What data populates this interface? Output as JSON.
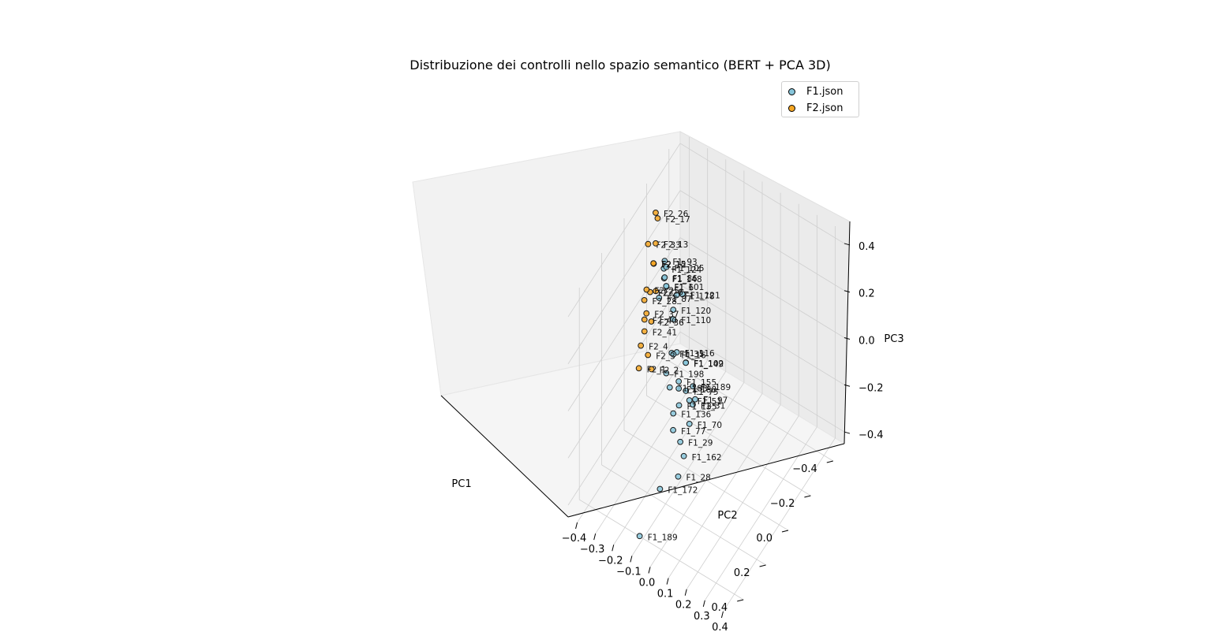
{
  "chart_data": {
    "type": "scatter",
    "title": "Distribuzione dei controlli nello spazio semantico (BERT + PCA 3D)",
    "xlabel": "PC1",
    "ylabel": "PC2",
    "zlabel": "PC3",
    "xticks": [
      "−0.4",
      "−0.2",
      "0.0",
      "0.2",
      "0.4"
    ],
    "yticks": [
      "−0.4",
      "−0.3",
      "−0.2",
      "−0.1",
      "0.0",
      "0.1",
      "0.2",
      "0.3",
      "0.4"
    ],
    "zticks": [
      "−0.4",
      "−0.2",
      "0.0",
      "0.2",
      "0.4"
    ],
    "xlim": [
      -0.5,
      0.5
    ],
    "ylim": [
      -0.45,
      0.45
    ],
    "zlim": [
      -0.45,
      0.45
    ],
    "grid": true,
    "legend_position": "top-right",
    "colors": {
      "F1.json": "#87c5da",
      "F2.json": "#f5a623"
    },
    "series": [
      {
        "name": "F1.json",
        "points": [
          {
            "label": "F1_148",
            "x": 0.05,
            "y": -0.2,
            "z": 0.35
          },
          {
            "label": "F1_124",
            "x": 0.02,
            "y": -0.22,
            "z": 0.36
          },
          {
            "label": "F1_6",
            "x": 0.03,
            "y": -0.2,
            "z": 0.3
          },
          {
            "label": "F1_121",
            "x": 0.05,
            "y": -0.1,
            "z": 0.33
          },
          {
            "label": "F1_105",
            "x": -0.1,
            "y": -0.28,
            "z": 0.25
          },
          {
            "label": "F1_93",
            "x": -0.15,
            "y": -0.32,
            "z": 0.22
          },
          {
            "label": "F1_101",
            "x": -0.05,
            "y": -0.25,
            "z": 0.22
          },
          {
            "label": "F1_86",
            "x": -0.15,
            "y": -0.32,
            "z": 0.15
          },
          {
            "label": "F1_87",
            "x": -0.1,
            "y": -0.32,
            "z": 0.1
          },
          {
            "label": "F1_110",
            "x": 0.05,
            "y": -0.15,
            "z": 0.2
          },
          {
            "label": "F1_120",
            "x": 0.05,
            "y": -0.15,
            "z": 0.24
          },
          {
            "label": "F1_178",
            "x": 0.02,
            "y": -0.15,
            "z": 0.28
          },
          {
            "label": "F1_116",
            "x": 0.1,
            "y": -0.1,
            "z": 0.12
          },
          {
            "label": "F1_102",
            "x": 0.1,
            "y": -0.05,
            "z": 0.1
          },
          {
            "label": "F1_149",
            "x": 0.15,
            "y": -0.02,
            "z": 0.15
          },
          {
            "label": "F1_189",
            "x": 0.2,
            "y": 0.05,
            "z": 0.12
          },
          {
            "label": "F1_97",
            "x": 0.18,
            "y": 0.05,
            "z": 0.05
          },
          {
            "label": "F1_51",
            "x": 0.15,
            "y": 0.0,
            "z": 0.0
          },
          {
            "label": "F1_75",
            "x": 0.1,
            "y": -0.05,
            "z": -0.02
          },
          {
            "label": "F1_31",
            "x": 0.12,
            "y": 0.0,
            "z": -0.04
          },
          {
            "label": "F1_70",
            "x": 0.15,
            "y": 0.0,
            "z": -0.1
          },
          {
            "label": "F1_162",
            "x": 0.2,
            "y": 0.0,
            "z": -0.2
          },
          {
            "label": "F1_28",
            "x": 0.25,
            "y": 0.0,
            "z": -0.25
          },
          {
            "label": "F1_29",
            "x": 0.15,
            "y": -0.05,
            "z": -0.2
          },
          {
            "label": "F1_77",
            "x": 0.1,
            "y": -0.12,
            "z": -0.22
          },
          {
            "label": "F1_136",
            "x": 0.05,
            "y": -0.15,
            "z": -0.2
          },
          {
            "label": "F1_183",
            "x": 0.0,
            "y": -0.2,
            "z": -0.15
          },
          {
            "label": "F1_198",
            "x": -0.05,
            "y": -0.25,
            "z": -0.15
          },
          {
            "label": "F1_35",
            "x": -0.05,
            "y": -0.22,
            "z": -0.05
          },
          {
            "label": "F1_16",
            "x": 0.0,
            "y": -0.18,
            "z": 0.0
          },
          {
            "label": "F1_155",
            "x": 0.05,
            "y": -0.12,
            "z": -0.05
          },
          {
            "label": "F1_188",
            "x": 0.05,
            "y": -0.12,
            "z": -0.08
          },
          {
            "label": "F1_135",
            "x": 0.08,
            "y": -0.1,
            "z": -0.12
          },
          {
            "label": "F1_172",
            "x": 0.25,
            "y": -0.1,
            "z": -0.35
          },
          {
            "label": "F1_189",
            "x": 0.35,
            "y": -0.15,
            "z": -0.5
          }
        ]
      },
      {
        "name": "F2.json",
        "points": [
          {
            "label": "F2_26",
            "x": -0.2,
            "y": -0.4,
            "z": 0.35
          },
          {
            "label": "F2_33",
            "x": -0.1,
            "y": -0.38,
            "z": 0.3
          },
          {
            "label": "F2_17",
            "x": -0.25,
            "y": -0.42,
            "z": 0.28
          },
          {
            "label": "F2_13",
            "x": -0.2,
            "y": -0.4,
            "z": 0.22
          },
          {
            "label": "F2_12",
            "x": -0.15,
            "y": -0.38,
            "z": 0.18
          },
          {
            "label": "F2_15",
            "x": -0.18,
            "y": -0.4,
            "z": 0.15
          },
          {
            "label": "F2_6",
            "x": -0.12,
            "y": -0.35,
            "z": 0.1
          },
          {
            "label": "F2_27",
            "x": -0.15,
            "y": -0.4,
            "z": 0.05
          },
          {
            "label": "F2_36",
            "x": -0.08,
            "y": -0.35,
            "z": 0.0
          },
          {
            "label": "F2_25",
            "x": -0.2,
            "y": -0.45,
            "z": 0.0
          },
          {
            "label": "F2_28",
            "x": -0.18,
            "y": -0.45,
            "z": -0.03
          },
          {
            "label": "F2_37",
            "x": -0.15,
            "y": -0.42,
            "z": -0.05
          },
          {
            "label": "F2_40",
            "x": -0.1,
            "y": -0.4,
            "z": -0.03
          },
          {
            "label": "F2_41",
            "x": -0.1,
            "y": -0.4,
            "z": -0.08
          },
          {
            "label": "F2_3",
            "x": -0.05,
            "y": -0.35,
            "z": -0.12
          },
          {
            "label": "F2_2",
            "x": 0.0,
            "y": -0.3,
            "z": -0.12
          },
          {
            "label": "F2_4",
            "x": -0.1,
            "y": -0.42,
            "z": -0.15
          },
          {
            "label": "F2_1",
            "x": -0.05,
            "y": -0.4,
            "z": -0.2
          }
        ]
      }
    ]
  }
}
